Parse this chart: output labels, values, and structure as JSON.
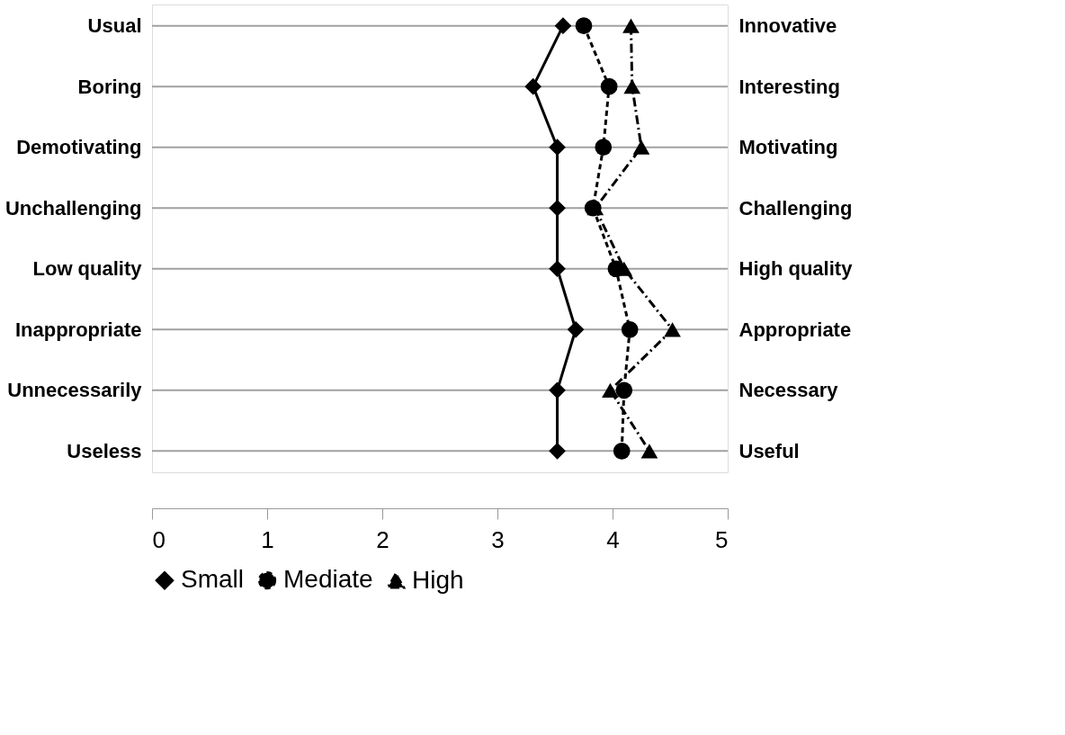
{
  "chart_data": {
    "type": "line",
    "orientation": "horizontal",
    "categories": [
      "Usual",
      "Boring",
      "Demotivating",
      "Unchallenging",
      "Low quality",
      "Inappropriate",
      "Unnecessarily",
      "Useless"
    ],
    "y2_categories": [
      "Innovative",
      "Interesting",
      "Motivating",
      "Challenging",
      "High quality",
      "Appropriate",
      "Necessary",
      "Useful"
    ],
    "series": [
      {
        "name": "Small",
        "color": "#000000",
        "marker": "diamond",
        "line_style": "solid",
        "values": [
          3.57,
          3.31,
          3.52,
          3.52,
          3.52,
          3.68,
          3.52,
          3.52
        ]
      },
      {
        "name": "Mediate",
        "color": "#000000",
        "marker": "circle",
        "line_style": "dashed",
        "values": [
          3.75,
          3.97,
          3.92,
          3.83,
          4.03,
          4.15,
          4.1,
          4.08
        ]
      },
      {
        "name": "High",
        "color": "#000000",
        "marker": "triangle",
        "line_style": "dashdot",
        "values": [
          4.16,
          4.17,
          4.25,
          3.85,
          4.1,
          4.52,
          3.98,
          4.32
        ]
      }
    ],
    "xlim": [
      0,
      5
    ],
    "xticks": [
      0,
      1,
      2,
      3,
      4,
      5
    ],
    "grid": "y",
    "legend": "bottom"
  }
}
